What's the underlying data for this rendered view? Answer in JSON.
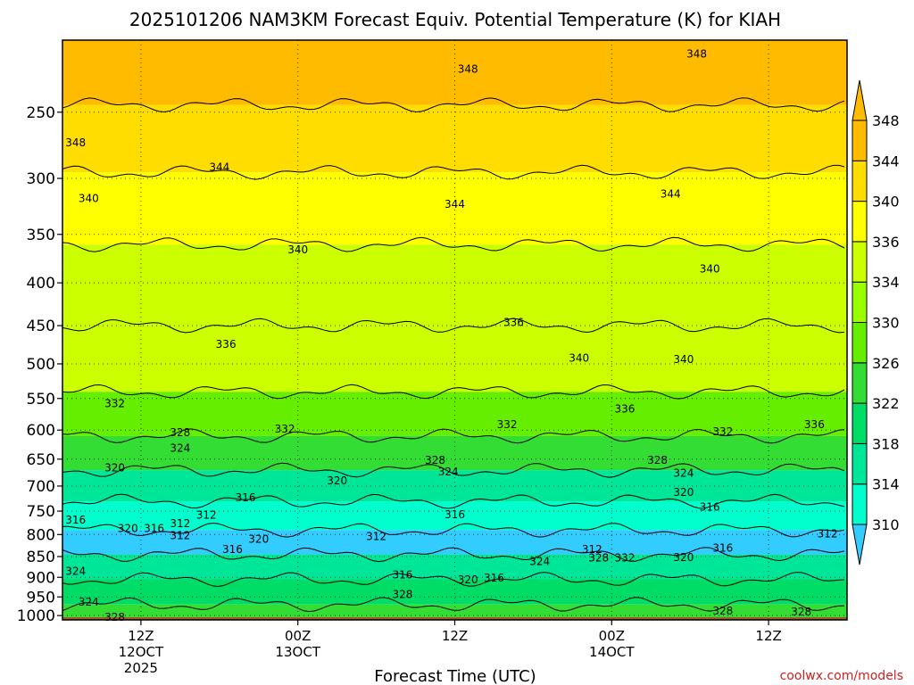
{
  "chart_data": {
    "type": "heatmap",
    "title": "2025101206 NAM3KM Forecast Equiv. Potential Temperature (K) for KIAH",
    "xlabel": "Forecast Time (UTC)",
    "ylabel": "",
    "x_ticks": [
      {
        "label": "12Z",
        "sub": "12OCT",
        "sub2": "2025",
        "hour": 6
      },
      {
        "label": "00Z",
        "sub": "13OCT",
        "sub2": "",
        "hour": 18
      },
      {
        "label": "12Z",
        "sub": "",
        "sub2": "",
        "hour": 30
      },
      {
        "label": "00Z",
        "sub": "14OCT",
        "sub2": "",
        "hour": 42
      },
      {
        "label": "12Z",
        "sub": "",
        "sub2": "",
        "hour": 54
      }
    ],
    "x_range_hours": [
      0,
      60
    ],
    "y_scale": "log",
    "y_range_hPa": [
      1012,
      205
    ],
    "y_ticks": [
      250,
      300,
      350,
      400,
      450,
      500,
      550,
      600,
      650,
      700,
      750,
      800,
      850,
      900,
      950,
      1000
    ],
    "colorbar": {
      "levels": [
        310,
        314,
        318,
        322,
        326,
        330,
        334,
        336,
        340,
        344,
        348
      ],
      "colors": [
        "#33ccff",
        "#00ffcc",
        "#00e699",
        "#00dd66",
        "#33dd33",
        "#66ee00",
        "#99ff00",
        "#ccff00",
        "#ffff00",
        "#ffdd00",
        "#ffbb00"
      ]
    },
    "ground_color": "#a0522d",
    "layers": [
      {
        "p": 220,
        "value": 350
      },
      {
        "p": 270,
        "value": 346
      },
      {
        "p": 320,
        "value": 342
      },
      {
        "p": 400,
        "value": 338
      },
      {
        "p": 500,
        "value": 336
      },
      {
        "p": 580,
        "value": 332
      },
      {
        "p": 640,
        "value": 326
      },
      {
        "p": 700,
        "value": 320
      },
      {
        "p": 760,
        "value": 316
      },
      {
        "p": 820,
        "value": 312
      },
      {
        "p": 870,
        "value": 318
      },
      {
        "p": 940,
        "value": 324
      },
      {
        "p": 1000,
        "value": 326
      }
    ],
    "contour_labels": [
      {
        "text": "348",
        "hour": 31,
        "p": 222
      },
      {
        "text": "348",
        "hour": 48.5,
        "p": 213
      },
      {
        "text": "348",
        "hour": 1,
        "p": 272
      },
      {
        "text": "344",
        "hour": 12,
        "p": 291
      },
      {
        "text": "344",
        "hour": 30,
        "p": 322
      },
      {
        "text": "344",
        "hour": 46.5,
        "p": 313
      },
      {
        "text": "340",
        "hour": 2,
        "p": 317
      },
      {
        "text": "340",
        "hour": 18,
        "p": 365
      },
      {
        "text": "340",
        "hour": 49.5,
        "p": 385
      },
      {
        "text": "340",
        "hour": 39.5,
        "p": 492
      },
      {
        "text": "340",
        "hour": 47.5,
        "p": 494
      },
      {
        "text": "336",
        "hour": 12.5,
        "p": 474
      },
      {
        "text": "336",
        "hour": 34.5,
        "p": 446
      },
      {
        "text": "336",
        "hour": 43,
        "p": 566
      },
      {
        "text": "336",
        "hour": 57.5,
        "p": 591
      },
      {
        "text": "332",
        "hour": 4,
        "p": 558
      },
      {
        "text": "332",
        "hour": 17,
        "p": 598
      },
      {
        "text": "332",
        "hour": 34,
        "p": 591
      },
      {
        "text": "332",
        "hour": 50.5,
        "p": 603
      },
      {
        "text": "328",
        "hour": 9,
        "p": 604
      },
      {
        "text": "328",
        "hour": 28.5,
        "p": 652
      },
      {
        "text": "328",
        "hour": 45.5,
        "p": 652
      },
      {
        "text": "324",
        "hour": 9,
        "p": 631
      },
      {
        "text": "324",
        "hour": 29.5,
        "p": 673
      },
      {
        "text": "324",
        "hour": 47.5,
        "p": 676
      },
      {
        "text": "324",
        "hour": 1,
        "p": 885
      },
      {
        "text": "324",
        "hour": 2,
        "p": 963
      },
      {
        "text": "324",
        "hour": 36.5,
        "p": 862
      },
      {
        "text": "320",
        "hour": 4,
        "p": 666
      },
      {
        "text": "320",
        "hour": 21,
        "p": 690
      },
      {
        "text": "320",
        "hour": 47.5,
        "p": 712
      },
      {
        "text": "320",
        "hour": 5,
        "p": 787
      },
      {
        "text": "320",
        "hour": 15,
        "p": 810
      },
      {
        "text": "320",
        "hour": 31,
        "p": 906
      },
      {
        "text": "320",
        "hour": 47.5,
        "p": 852
      },
      {
        "text": "316",
        "hour": 14,
        "p": 723
      },
      {
        "text": "316",
        "hour": 30,
        "p": 757
      },
      {
        "text": "316",
        "hour": 49.5,
        "p": 742
      },
      {
        "text": "316",
        "hour": 1,
        "p": 769
      },
      {
        "text": "316",
        "hour": 7,
        "p": 787
      },
      {
        "text": "316",
        "hour": 13,
        "p": 833
      },
      {
        "text": "316",
        "hour": 26,
        "p": 894
      },
      {
        "text": "316",
        "hour": 33,
        "p": 902
      },
      {
        "text": "316",
        "hour": 50.5,
        "p": 830
      },
      {
        "text": "312",
        "hour": 11,
        "p": 758
      },
      {
        "text": "312",
        "hour": 9,
        "p": 776
      },
      {
        "text": "312",
        "hour": 9,
        "p": 802
      },
      {
        "text": "312",
        "hour": 24,
        "p": 804
      },
      {
        "text": "312",
        "hour": 40.5,
        "p": 833
      },
      {
        "text": "312",
        "hour": 58.5,
        "p": 798
      },
      {
        "text": "328",
        "hour": 26,
        "p": 944
      },
      {
        "text": "328",
        "hour": 41,
        "p": 853
      },
      {
        "text": "328",
        "hour": 4,
        "p": 1004
      },
      {
        "text": "328",
        "hour": 50.5,
        "p": 988
      },
      {
        "text": "328",
        "hour": 56.5,
        "p": 990
      },
      {
        "text": "332",
        "hour": 43,
        "p": 853
      }
    ]
  },
  "credit": "coolwx.com/models"
}
